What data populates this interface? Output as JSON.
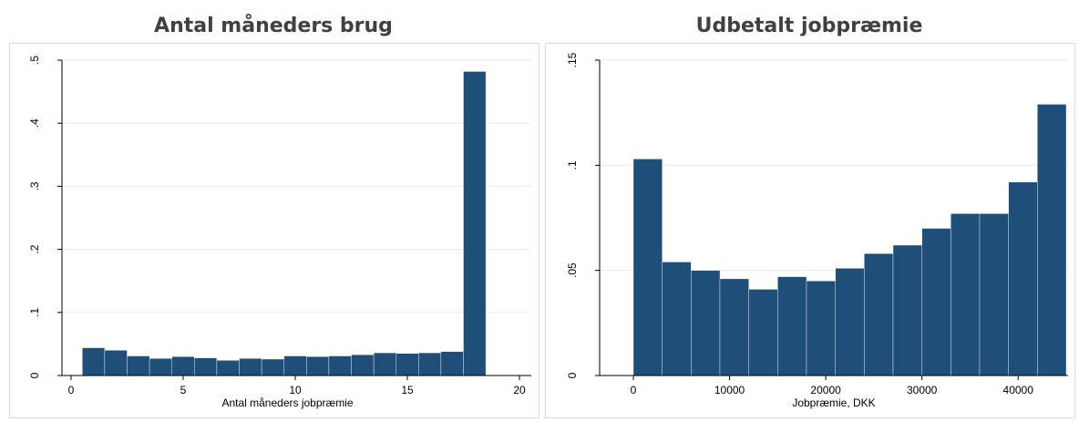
{
  "panels": [
    {
      "title": "Antal måneders brug"
    },
    {
      "title": "Udbetalt jobpræmie"
    }
  ],
  "chart_data": [
    {
      "type": "bar",
      "title": "Antal måneders brug",
      "xlabel": "Antal måneders jobpræmie",
      "ylabel": "",
      "xlim": [
        0,
        20
      ],
      "ylim": [
        0,
        0.5
      ],
      "x_ticks": [
        0,
        5,
        10,
        15,
        20
      ],
      "x_tick_labels": [
        "0",
        "5",
        "10",
        "15",
        "20"
      ],
      "y_ticks": [
        0,
        0.1,
        0.2,
        0.3,
        0.4,
        0.5
      ],
      "y_tick_labels": [
        "0",
        ".1",
        ".2",
        ".3",
        ".4",
        ".5"
      ],
      "grid": true,
      "bar_color": "#1f4e79",
      "bins": [
        {
          "x0": 0.5,
          "x1": 1.5,
          "value": 0.044
        },
        {
          "x0": 1.5,
          "x1": 2.5,
          "value": 0.04
        },
        {
          "x0": 2.5,
          "x1": 3.5,
          "value": 0.031
        },
        {
          "x0": 3.5,
          "x1": 4.5,
          "value": 0.027
        },
        {
          "x0": 4.5,
          "x1": 5.5,
          "value": 0.03
        },
        {
          "x0": 5.5,
          "x1": 6.5,
          "value": 0.028
        },
        {
          "x0": 6.5,
          "x1": 7.5,
          "value": 0.024
        },
        {
          "x0": 7.5,
          "x1": 8.5,
          "value": 0.027
        },
        {
          "x0": 8.5,
          "x1": 9.5,
          "value": 0.026
        },
        {
          "x0": 9.5,
          "x1": 10.5,
          "value": 0.031
        },
        {
          "x0": 10.5,
          "x1": 11.5,
          "value": 0.03
        },
        {
          "x0": 11.5,
          "x1": 12.5,
          "value": 0.031
        },
        {
          "x0": 12.5,
          "x1": 13.5,
          "value": 0.033
        },
        {
          "x0": 13.5,
          "x1": 14.5,
          "value": 0.036
        },
        {
          "x0": 14.5,
          "x1": 15.5,
          "value": 0.035
        },
        {
          "x0": 15.5,
          "x1": 16.5,
          "value": 0.036
        },
        {
          "x0": 16.5,
          "x1": 17.5,
          "value": 0.038
        },
        {
          "x0": 17.5,
          "x1": 18.5,
          "value": 0.482
        }
      ]
    },
    {
      "type": "bar",
      "title": "Udbetalt jobpræmie",
      "xlabel": "Jobpræmie, DKK",
      "ylabel": "",
      "xlim": [
        0,
        45000
      ],
      "ylim": [
        0,
        0.15
      ],
      "x_ticks": [
        0,
        10000,
        20000,
        30000,
        40000
      ],
      "x_tick_labels": [
        "0",
        "10000",
        "20000",
        "30000",
        "40000"
      ],
      "y_ticks": [
        0,
        0.05,
        0.1,
        0.15
      ],
      "y_tick_labels": [
        "0",
        ".05",
        ".1",
        ".15"
      ],
      "grid": true,
      "bar_color": "#1f4e79",
      "bins": [
        {
          "x0": 0,
          "x1": 3000,
          "value": 0.103
        },
        {
          "x0": 3000,
          "x1": 6000,
          "value": 0.054
        },
        {
          "x0": 6000,
          "x1": 9000,
          "value": 0.05
        },
        {
          "x0": 9000,
          "x1": 12000,
          "value": 0.046
        },
        {
          "x0": 12000,
          "x1": 15000,
          "value": 0.041
        },
        {
          "x0": 15000,
          "x1": 18000,
          "value": 0.047
        },
        {
          "x0": 18000,
          "x1": 21000,
          "value": 0.045
        },
        {
          "x0": 21000,
          "x1": 24000,
          "value": 0.051
        },
        {
          "x0": 24000,
          "x1": 27000,
          "value": 0.058
        },
        {
          "x0": 27000,
          "x1": 30000,
          "value": 0.062
        },
        {
          "x0": 30000,
          "x1": 33000,
          "value": 0.07
        },
        {
          "x0": 33000,
          "x1": 36000,
          "value": 0.077
        },
        {
          "x0": 36000,
          "x1": 39000,
          "value": 0.077
        },
        {
          "x0": 39000,
          "x1": 42000,
          "value": 0.092
        },
        {
          "x0": 42000,
          "x1": 45000,
          "value": 0.129
        }
      ]
    }
  ]
}
